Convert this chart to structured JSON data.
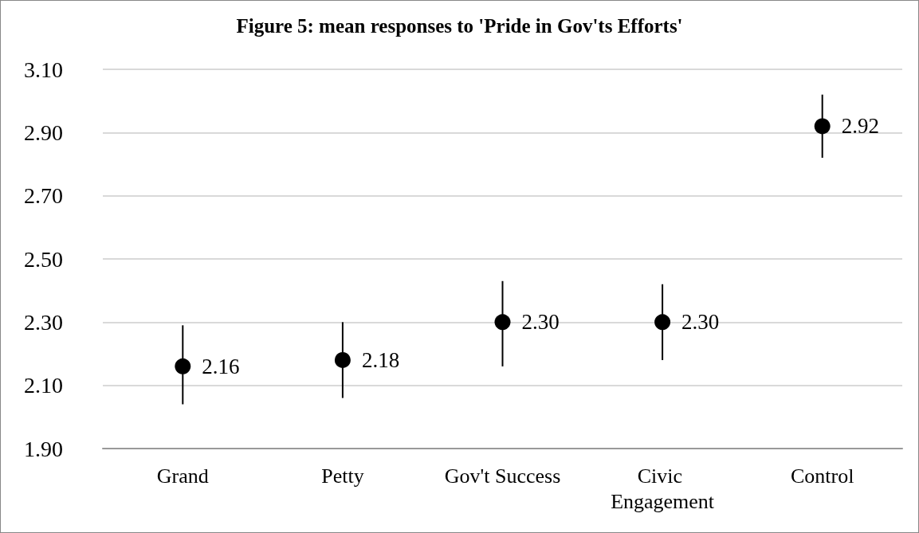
{
  "chart_data": {
    "type": "scatter",
    "title": "Figure 5: mean responses to 'Pride in Gov'ts Efforts'",
    "categories": [
      "Grand",
      "Petty",
      "Gov't Success",
      "Civic Engagement",
      "Control"
    ],
    "values": [
      2.16,
      2.18,
      2.3,
      2.3,
      2.92
    ],
    "errors": [
      [
        2.04,
        2.29
      ],
      [
        2.06,
        2.3
      ],
      [
        2.16,
        2.43
      ],
      [
        2.18,
        2.42
      ],
      [
        2.82,
        3.02
      ]
    ],
    "value_labels": [
      "2.16",
      "2.18",
      "2.30",
      "2.30",
      "2.92"
    ],
    "color": "#000000",
    "marker": "circle",
    "grid": "y",
    "ylim": [
      1.9,
      3.1
    ],
    "yticks": [
      {
        "value": 1.9,
        "label": "1.90"
      },
      {
        "value": 2.1,
        "label": "2.10"
      },
      {
        "value": 2.3,
        "label": "2.30"
      },
      {
        "value": 2.5,
        "label": "2.50"
      },
      {
        "value": 2.7,
        "label": "2.70"
      },
      {
        "value": 2.9,
        "label": "2.90"
      },
      {
        "value": 3.1,
        "label": "3.10"
      }
    ]
  }
}
